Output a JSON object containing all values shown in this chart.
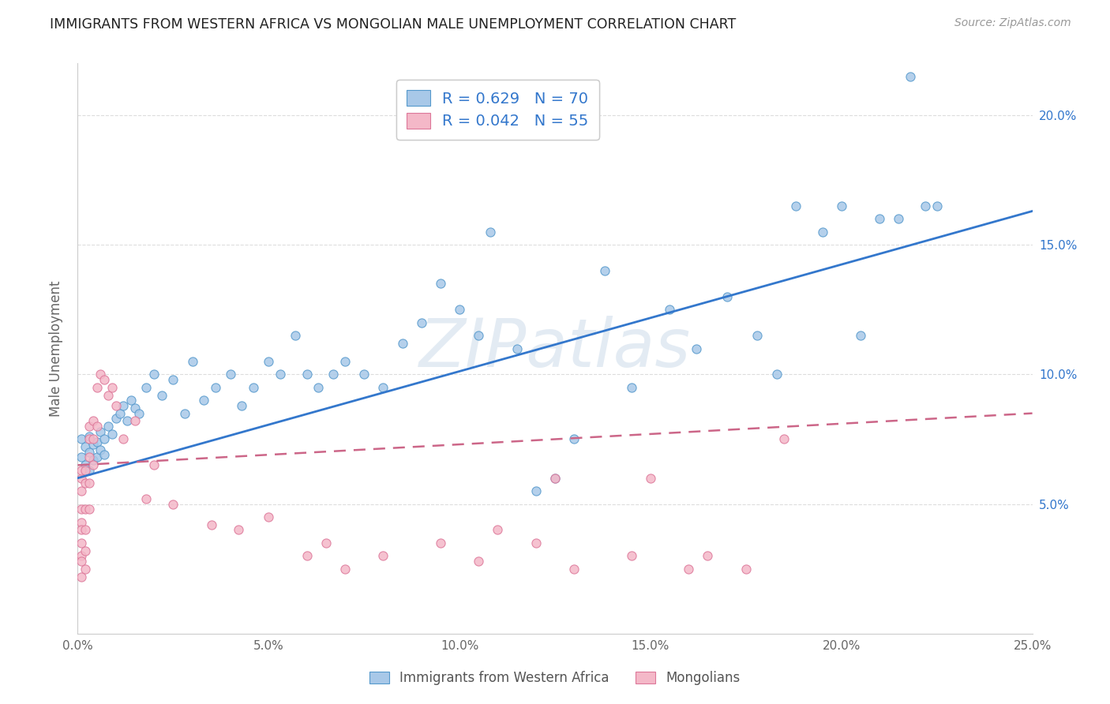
{
  "title": "IMMIGRANTS FROM WESTERN AFRICA VS MONGOLIAN MALE UNEMPLOYMENT CORRELATION CHART",
  "source": "Source: ZipAtlas.com",
  "ylabel": "Male Unemployment",
  "xlim": [
    0.0,
    0.25
  ],
  "ylim": [
    0.0,
    0.22
  ],
  "xticks": [
    0.0,
    0.05,
    0.1,
    0.15,
    0.2,
    0.25
  ],
  "yticks": [
    0.05,
    0.1,
    0.15,
    0.2
  ],
  "series1_color": "#a8c8e8",
  "series1_edge": "#5599cc",
  "series2_color": "#f4b8c8",
  "series2_edge": "#dd7799",
  "line1_color": "#3377cc",
  "line2_color": "#cc6688",
  "legend_R1": "0.629",
  "legend_N1": "70",
  "legend_R2": "0.042",
  "legend_N2": "55",
  "legend_label1": "Immigrants from Western Africa",
  "legend_label2": "Mongolians",
  "watermark": "ZIPatlas",
  "line1_x0": 0.0,
  "line1_y0": 0.06,
  "line1_x1": 0.25,
  "line1_y1": 0.163,
  "line2_x0": 0.0,
  "line2_y0": 0.065,
  "line2_x1": 0.25,
  "line2_y1": 0.085,
  "series1_x": [
    0.001,
    0.001,
    0.002,
    0.002,
    0.003,
    0.003,
    0.003,
    0.004,
    0.004,
    0.005,
    0.005,
    0.006,
    0.006,
    0.007,
    0.007,
    0.008,
    0.009,
    0.01,
    0.011,
    0.012,
    0.013,
    0.014,
    0.015,
    0.016,
    0.018,
    0.02,
    0.022,
    0.025,
    0.028,
    0.03,
    0.033,
    0.036,
    0.04,
    0.043,
    0.046,
    0.05,
    0.053,
    0.057,
    0.06,
    0.063,
    0.067,
    0.07,
    0.075,
    0.08,
    0.085,
    0.09,
    0.095,
    0.1,
    0.105,
    0.108,
    0.115,
    0.12,
    0.125,
    0.13,
    0.138,
    0.145,
    0.155,
    0.162,
    0.17,
    0.178,
    0.183,
    0.188,
    0.195,
    0.2,
    0.205,
    0.21,
    0.215,
    0.218,
    0.222,
    0.225
  ],
  "series1_y": [
    0.068,
    0.075,
    0.065,
    0.072,
    0.063,
    0.07,
    0.076,
    0.067,
    0.073,
    0.068,
    0.074,
    0.071,
    0.078,
    0.075,
    0.069,
    0.08,
    0.077,
    0.083,
    0.085,
    0.088,
    0.082,
    0.09,
    0.087,
    0.085,
    0.095,
    0.1,
    0.092,
    0.098,
    0.085,
    0.105,
    0.09,
    0.095,
    0.1,
    0.088,
    0.095,
    0.105,
    0.1,
    0.115,
    0.1,
    0.095,
    0.1,
    0.105,
    0.1,
    0.095,
    0.112,
    0.12,
    0.135,
    0.125,
    0.115,
    0.155,
    0.11,
    0.055,
    0.06,
    0.075,
    0.14,
    0.095,
    0.125,
    0.11,
    0.13,
    0.115,
    0.1,
    0.165,
    0.155,
    0.165,
    0.115,
    0.16,
    0.16,
    0.215,
    0.165,
    0.165
  ],
  "series2_x": [
    0.001,
    0.001,
    0.001,
    0.001,
    0.001,
    0.001,
    0.001,
    0.001,
    0.001,
    0.001,
    0.002,
    0.002,
    0.002,
    0.002,
    0.002,
    0.002,
    0.003,
    0.003,
    0.003,
    0.003,
    0.003,
    0.004,
    0.004,
    0.004,
    0.005,
    0.005,
    0.006,
    0.007,
    0.008,
    0.009,
    0.01,
    0.012,
    0.015,
    0.018,
    0.02,
    0.025,
    0.035,
    0.042,
    0.05,
    0.06,
    0.065,
    0.07,
    0.08,
    0.095,
    0.105,
    0.11,
    0.12,
    0.125,
    0.13,
    0.145,
    0.15,
    0.16,
    0.165,
    0.175,
    0.185
  ],
  "series2_y": [
    0.06,
    0.055,
    0.048,
    0.063,
    0.043,
    0.04,
    0.035,
    0.03,
    0.028,
    0.022,
    0.063,
    0.058,
    0.048,
    0.04,
    0.032,
    0.025,
    0.08,
    0.075,
    0.068,
    0.058,
    0.048,
    0.082,
    0.075,
    0.065,
    0.095,
    0.08,
    0.1,
    0.098,
    0.092,
    0.095,
    0.088,
    0.075,
    0.082,
    0.052,
    0.065,
    0.05,
    0.042,
    0.04,
    0.045,
    0.03,
    0.035,
    0.025,
    0.03,
    0.035,
    0.028,
    0.04,
    0.035,
    0.06,
    0.025,
    0.03,
    0.06,
    0.025,
    0.03,
    0.025,
    0.075
  ]
}
